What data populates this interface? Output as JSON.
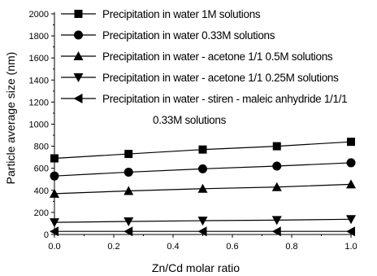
{
  "chart_data": {
    "type": "line",
    "xlabel": "Zn/Cd molar ratio",
    "ylabel": "Particle average size (nm)",
    "xlim": [
      0.0,
      1.0
    ],
    "ylim": [
      0,
      2000
    ],
    "x_ticks": [
      "0.0",
      "0.2",
      "0.4",
      "0.6",
      "0.8",
      "1.0"
    ],
    "y_ticks": [
      "0",
      "200",
      "400",
      "600",
      "800",
      "1000",
      "1200",
      "1400",
      "1600",
      "1800",
      "2000"
    ],
    "x": [
      0.0,
      0.25,
      0.5,
      0.75,
      1.0
    ],
    "grid": false,
    "legend_position": "top-left",
    "series": [
      {
        "name": "Precipitation in water 1M solutions",
        "marker": "square",
        "values": [
          690,
          730,
          770,
          800,
          840
        ]
      },
      {
        "name": "Precipitation in water 0.33M solutions",
        "marker": "circle",
        "values": [
          530,
          565,
          595,
          620,
          650
        ]
      },
      {
        "name": "Precipitation in water - acetone 1/1 0.5M solutions",
        "marker": "triangle-up",
        "values": [
          370,
          395,
          415,
          430,
          455
        ]
      },
      {
        "name": "Precipitation in water - acetone 1/1 0.25M solutions",
        "marker": "triangle-down",
        "values": [
          110,
          118,
          125,
          130,
          138
        ]
      },
      {
        "name": "Precipitation in water - stiren - maleic anhydride 1/1/1",
        "name_line2": "0.33M solutions",
        "marker": "triangle-left",
        "values": [
          28,
          28,
          28,
          28,
          28
        ]
      }
    ]
  }
}
